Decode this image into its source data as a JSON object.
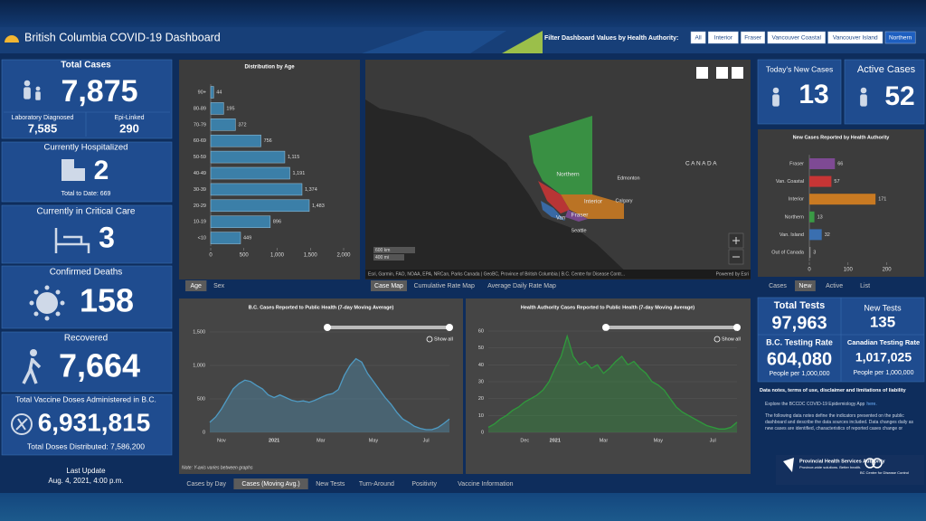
{
  "header": {
    "title": "British Columbia COVID-19 Dashboard",
    "filter_label": "Filter Dashboard Values by Health Authority:",
    "filters": [
      "All",
      "Interior",
      "Fraser",
      "Vancouver Coastal",
      "Vancouver Island",
      "Northern"
    ],
    "selected_filter": 5
  },
  "total_cases": {
    "title": "Total Cases",
    "value": "7,875",
    "breakdown": [
      {
        "label": "Laboratory Diagnosed",
        "value": "7,585"
      },
      {
        "label": "Epi-Linked",
        "value": "290"
      }
    ]
  },
  "hospitalized": {
    "title": "Currently Hospitalized",
    "value": "2",
    "note": "Total to Date: 669"
  },
  "critical_care": {
    "title": "Currently in Critical Care",
    "value": "3"
  },
  "deaths": {
    "title": "Confirmed Deaths",
    "value": "158"
  },
  "recovered": {
    "title": "Recovered",
    "value": "7,664"
  },
  "vaccine": {
    "title": "Total Vaccine Doses Administered in B.C.",
    "value": "6,931,815",
    "note": "Total Doses Distributed: 7,586,200"
  },
  "last_update": {
    "label": "Last Update",
    "value": "Aug. 4, 2021, 4:00 p.m."
  },
  "age_tabs": {
    "items": [
      "Age",
      "Sex"
    ],
    "selected": 0
  },
  "map": {
    "labels": [
      "Northern",
      "Edmonton",
      "CANADA",
      "Interior",
      "Calgary",
      "Fraser",
      "Van",
      "Seattle"
    ],
    "scale": [
      "600 km",
      "400 mi"
    ],
    "attribution": "Esri, Garmin, FAO, NOAA, EPA, NRCan, Parks Canada | GeoBC, Province of British Columbia | B.C. Centre for Disease Contr...",
    "powered_by": "Powered by Esri",
    "tabs": {
      "items": [
        "Case Map",
        "Cumulative Rate Map",
        "Average Daily Rate Map"
      ],
      "selected": 0
    }
  },
  "todays_new_cases": {
    "title": "Today's New Cases",
    "value": "13"
  },
  "active_cases": {
    "title": "Active Cases",
    "value": "52"
  },
  "ha_tabs": {
    "items": [
      "Cases",
      "New",
      "Active",
      "List"
    ],
    "selected": 1
  },
  "testing": {
    "total_tests": {
      "title": "Total Tests",
      "value": "97,963"
    },
    "new_tests": {
      "title": "New Tests",
      "value": "135"
    },
    "bc_rate": {
      "title": "B.C. Testing Rate",
      "value": "604,080",
      "unit": "People per 1,000,000"
    },
    "canadian_rate": {
      "title": "Canadian Testing Rate",
      "value": "1,017,025",
      "unit": "People per 1,000,000"
    }
  },
  "notes": {
    "heading": "Data notes, terms of use, disclaimer and limitations of liability",
    "explore": "Explore the BCCDC COVID-19 Epidemiology App",
    "link": "here.",
    "body": "The following data notes define the indicators presented on the public dashboard and describe the data sources included. Data changes daily as new cases are identified, characteristics of reported cases change or"
  },
  "logos": {
    "phsa": "Provincial Health Services Authority",
    "phsa_tagline": "Province-wide solutions. Better health.",
    "bccdc": "BC Centre for Disease Control"
  },
  "line_note": "Note: Y-axis varies between graphs",
  "bottom_tabs": {
    "items": [
      "Cases by Day",
      "Cases (Moving Avg.)",
      "New Tests",
      "Turn-Around",
      "Positivity",
      "Vaccine Information"
    ],
    "selected": 1
  },
  "chart_data": [
    {
      "type": "bar",
      "title": "Distribution by Age",
      "categories": [
        "90+",
        "80-89",
        "70-79",
        "60-69",
        "50-59",
        "40-49",
        "30-39",
        "20-29",
        "10-19",
        "<10"
      ],
      "values": [
        44,
        195,
        372,
        756,
        1115,
        1191,
        1374,
        1483,
        896,
        449
      ],
      "value_labels": [
        "44",
        "195",
        "372",
        "756",
        "1,115",
        "1,191",
        "1,374",
        "1,483",
        "896",
        "449"
      ],
      "color": "#3b7fa8",
      "xlim": [
        0,
        2000
      ],
      "xticks": [
        0,
        500,
        {
          "value": 1000,
          "label": "1,000"
        },
        {
          "value": 1500,
          "label": "1,500"
        },
        {
          "value": 2000,
          "label": "2,000"
        }
      ]
    },
    {
      "type": "bar",
      "title": "New Cases Reported by Health Authority",
      "categories": [
        "Fraser",
        "Van. Coastal",
        "Interior",
        "Northern",
        "Van. Island",
        "Out of Canada"
      ],
      "values": [
        66,
        57,
        171,
        13,
        32,
        3
      ],
      "colors": [
        "#7e4a94",
        "#c73535",
        "#c97a22",
        "#3a9a45",
        "#3a6fb0",
        "#8a8a8a"
      ],
      "xlim": [
        0,
        250
      ],
      "xticks": [
        0,
        100,
        200
      ]
    },
    {
      "type": "line",
      "title": "B.C. Cases Reported to Public Health (7-day Moving Average)",
      "show_all": "Show all",
      "categories": [
        null,
        null,
        "Nov",
        null,
        null,
        null,
        null,
        null,
        null,
        null,
        null,
        "2021",
        null,
        null,
        null,
        null,
        null,
        null,
        null,
        "Mar",
        null,
        null,
        null,
        null,
        null,
        null,
        null,
        null,
        "May",
        null,
        null,
        null,
        null,
        null,
        null,
        null,
        null,
        "Jul",
        null,
        null,
        null,
        null
      ],
      "values": [
        150,
        230,
        350,
        500,
        650,
        730,
        780,
        760,
        700,
        650,
        560,
        520,
        560,
        520,
        480,
        460,
        470,
        450,
        480,
        520,
        560,
        580,
        640,
        850,
        1000,
        1100,
        1050,
        880,
        760,
        640,
        520,
        420,
        300,
        200,
        150,
        90,
        60,
        40,
        40,
        70,
        130,
        200
      ],
      "color": "#4f9bc4",
      "ylim": [
        0,
        1500
      ],
      "yticks": [
        0,
        500,
        {
          "value": 1000,
          "label": "1,000"
        },
        {
          "value": 1500,
          "label": "1,500"
        }
      ]
    },
    {
      "type": "line",
      "title": "Health Authority Cases Reported to Public Health (7-day Moving Average)",
      "show_all": "Show all",
      "categories": [
        null,
        null,
        null,
        null,
        null,
        null,
        "Dec",
        null,
        null,
        null,
        null,
        "2021",
        null,
        null,
        null,
        null,
        null,
        null,
        null,
        "Mar",
        null,
        null,
        null,
        null,
        null,
        null,
        null,
        null,
        "May",
        null,
        null,
        null,
        null,
        null,
        null,
        null,
        null,
        "Jul",
        null,
        null,
        null,
        null
      ],
      "values": [
        3,
        5,
        8,
        10,
        13,
        15,
        18,
        20,
        22,
        25,
        30,
        38,
        45,
        57,
        45,
        40,
        42,
        38,
        40,
        35,
        38,
        42,
        45,
        40,
        42,
        38,
        35,
        30,
        28,
        25,
        20,
        15,
        12,
        10,
        8,
        6,
        4,
        3,
        2,
        2,
        3,
        6
      ],
      "color": "#2f9a3c",
      "ylim": [
        0,
        60
      ],
      "yticks": [
        0,
        10,
        20,
        30,
        40,
        50,
        60
      ]
    }
  ]
}
